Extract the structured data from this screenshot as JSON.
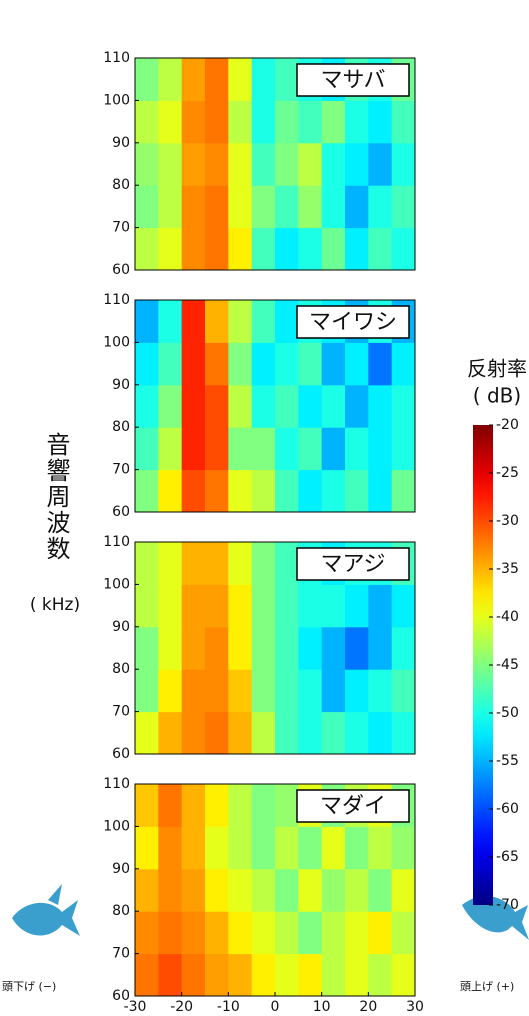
{
  "chart_data": [
    {
      "type": "heatmap",
      "title": "マサバ",
      "xbins": [
        -30,
        -25,
        -20,
        -15,
        -10,
        -5,
        0,
        5,
        10,
        15,
        20,
        25,
        30
      ],
      "ybins": [
        60,
        70,
        80,
        90,
        100,
        110
      ],
      "xlim": [
        -30,
        30
      ],
      "ylim": [
        60,
        110
      ],
      "yticks": [
        60,
        70,
        80,
        90,
        100,
        110
      ],
      "values": [
        [
          -42,
          -40,
          -33,
          -32,
          -38,
          -48,
          -52,
          -50,
          -46,
          -52,
          -48,
          -50
        ],
        [
          -45,
          -42,
          -33,
          -32,
          -40,
          -45,
          -48,
          -44,
          -50,
          -55,
          -50,
          -48
        ],
        [
          -44,
          -42,
          -34,
          -33,
          -40,
          -48,
          -45,
          -42,
          -50,
          -52,
          -55,
          -50
        ],
        [
          -42,
          -40,
          -33,
          -32,
          -42,
          -50,
          -46,
          -48,
          -45,
          -50,
          -52,
          -48
        ],
        [
          -45,
          -42,
          -34,
          -32,
          -40,
          -50,
          -48,
          -50,
          -52,
          -48,
          -50,
          -46
        ]
      ]
    },
    {
      "type": "heatmap",
      "title": "マイワシ",
      "xbins": [
        -30,
        -25,
        -20,
        -15,
        -10,
        -5,
        0,
        5,
        10,
        15,
        20,
        25,
        30
      ],
      "ybins": [
        60,
        70,
        80,
        90,
        100,
        110
      ],
      "xlim": [
        -30,
        30
      ],
      "ylim": [
        60,
        110
      ],
      "yticks": [
        60,
        70,
        80,
        90,
        100,
        110
      ],
      "values": [
        [
          -45,
          -38,
          -30,
          -32,
          -40,
          -42,
          -48,
          -52,
          -50,
          -48,
          -52,
          -46
        ],
        [
          -48,
          -42,
          -28,
          -30,
          -45,
          -45,
          -50,
          -48,
          -55,
          -50,
          -52,
          -50
        ],
        [
          -50,
          -45,
          -28,
          -30,
          -42,
          -50,
          -48,
          -52,
          -50,
          -55,
          -52,
          -50
        ],
        [
          -52,
          -48,
          -28,
          -32,
          -45,
          -52,
          -50,
          -48,
          -55,
          -52,
          -58,
          -52
        ],
        [
          -55,
          -50,
          -28,
          -35,
          -42,
          -48,
          -52,
          -50,
          -52,
          -55,
          -50,
          -55
        ]
      ]
    },
    {
      "type": "heatmap",
      "title": "マアジ",
      "xbins": [
        -30,
        -25,
        -20,
        -15,
        -10,
        -5,
        0,
        5,
        10,
        15,
        20,
        25,
        30
      ],
      "ybins": [
        60,
        70,
        80,
        90,
        100,
        110
      ],
      "xlim": [
        -30,
        30
      ],
      "ylim": [
        60,
        110
      ],
      "yticks": [
        60,
        70,
        80,
        90,
        100,
        110
      ],
      "values": [
        [
          -40,
          -35,
          -33,
          -32,
          -35,
          -42,
          -48,
          -50,
          -48,
          -50,
          -52,
          -50
        ],
        [
          -45,
          -38,
          -33,
          -33,
          -36,
          -45,
          -48,
          -50,
          -55,
          -52,
          -50,
          -48
        ],
        [
          -45,
          -40,
          -34,
          -33,
          -38,
          -45,
          -48,
          -52,
          -55,
          -58,
          -55,
          -50
        ],
        [
          -42,
          -40,
          -34,
          -34,
          -38,
          -45,
          -48,
          -50,
          -50,
          -52,
          -55,
          -52
        ],
        [
          -42,
          -40,
          -35,
          -35,
          -40,
          -45,
          -48,
          -50,
          -52,
          -50,
          -50,
          -48
        ]
      ]
    },
    {
      "type": "heatmap",
      "title": "マダイ",
      "xbins": [
        -30,
        -25,
        -20,
        -15,
        -10,
        -5,
        0,
        5,
        10,
        15,
        20,
        25,
        30
      ],
      "ybins": [
        60,
        70,
        80,
        90,
        100,
        110
      ],
      "xlim": [
        -30,
        30
      ],
      "ylim": [
        60,
        110
      ],
      "yticks": [
        60,
        70,
        80,
        90,
        100,
        110
      ],
      "xticks": [
        -30,
        -20,
        -10,
        0,
        10,
        20,
        30
      ],
      "values": [
        [
          -32,
          -30,
          -32,
          -34,
          -35,
          -38,
          -40,
          -38,
          -42,
          -40,
          -42,
          -40
        ],
        [
          -33,
          -32,
          -33,
          -35,
          -38,
          -40,
          -42,
          -45,
          -42,
          -40,
          -38,
          -42
        ],
        [
          -35,
          -33,
          -34,
          -38,
          -40,
          -42,
          -45,
          -40,
          -44,
          -42,
          -45,
          -40
        ],
        [
          -38,
          -33,
          -35,
          -40,
          -42,
          -45,
          -42,
          -45,
          -40,
          -45,
          -42,
          -44
        ],
        [
          -36,
          -32,
          -35,
          -38,
          -42,
          -45,
          -44,
          -40,
          -45,
          -42,
          -40,
          -45
        ]
      ]
    }
  ],
  "y_label": "音響周波数",
  "y_unit": "( kHz)",
  "colorbar": {
    "title": "反射率",
    "unit": "( dB)",
    "lim": [
      -70,
      -20
    ],
    "ticks": [
      -20,
      -25,
      -30,
      -35,
      -40,
      -45,
      -50,
      -55,
      -60,
      -65,
      -70
    ]
  },
  "left_note": "頭下げ (−)",
  "right_note": "頭上げ (+)"
}
